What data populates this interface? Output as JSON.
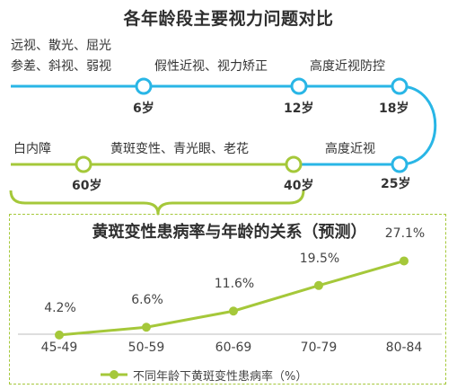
{
  "timeline": {
    "title": "各年龄段主要视力问题对比",
    "stages": [
      {
        "problems_line1": "远视、散光、屈光",
        "problems_line2": "参差、斜视、弱视"
      },
      {
        "age": "6岁",
        "problem": "假性近视、视力矫正"
      },
      {
        "age": "12岁",
        "problem": "高度近视防控"
      },
      {
        "age": "18岁"
      },
      {
        "age": "25岁",
        "problem": "高度近视"
      },
      {
        "age": "40岁",
        "problem": "黄斑变性、青光眼、老花"
      },
      {
        "age": "60岁",
        "problem": "白内障"
      }
    ],
    "colors": {
      "blue": "#29b6e6",
      "green": "#a5c83a"
    }
  },
  "chart_data": {
    "type": "line",
    "title": "黄斑变性患病率与年龄的关系（预测）",
    "categories": [
      "45-49",
      "50-59",
      "60-69",
      "70-79",
      "80-84"
    ],
    "series": [
      {
        "name": "不同年龄下黄斑变性患病率（%）",
        "values": [
          4.2,
          6.6,
          11.6,
          19.5,
          27.1
        ],
        "labels": [
          "4.2%",
          "6.6%",
          "11.6%",
          "19.5%",
          "27.1%"
        ],
        "color": "#a5c83a"
      }
    ],
    "ylim": [
      0,
      30
    ],
    "grid": false,
    "legend": "bottom"
  }
}
